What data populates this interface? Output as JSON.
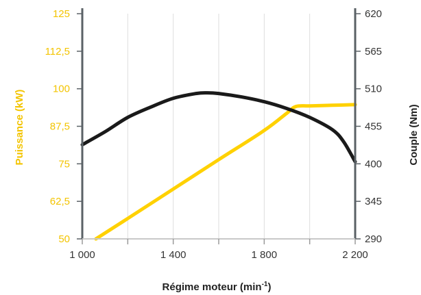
{
  "chart_data": {
    "type": "line",
    "title": "",
    "xlabel": "Régime moteur (min-1)",
    "ylabel_left": "Puissance (kW)",
    "ylabel_right": "Couple (Nm)",
    "x_ticks": [
      1000,
      1400,
      1800,
      2200
    ],
    "x_tick_labels": [
      "1 000",
      "1 400",
      "1 800",
      "2 200"
    ],
    "xlim": [
      1000,
      2200
    ],
    "y_left_ticks": [
      50,
      62.5,
      75,
      87.5,
      100,
      112.5,
      125
    ],
    "y_left_tick_labels": [
      "50",
      "62,5",
      "75",
      "87,5",
      "100",
      "112,5",
      "125"
    ],
    "y_left_lim": [
      50,
      125
    ],
    "y_right_ticks": [
      290,
      345,
      400,
      455,
      510,
      565,
      620
    ],
    "y_right_tick_labels": [
      "290",
      "345",
      "400",
      "455",
      "510",
      "565",
      "620"
    ],
    "y_right_lim": [
      290,
      620
    ],
    "grid": "vertical",
    "series": [
      {
        "axis": "left",
        "color": "#ffd100",
        "x": [
          1060,
          1200,
          1400,
          1600,
          1800,
          1900,
          1940,
          2000,
          2100,
          2200
        ],
        "y": [
          50,
          56.8,
          66.6,
          76.4,
          86.1,
          91.9,
          94.1,
          94.3,
          94.5,
          94.7
        ]
      },
      {
        "axis": "right",
        "color": "#1a1a1a",
        "x": [
          1000,
          1100,
          1200,
          1300,
          1400,
          1500,
          1550,
          1600,
          1700,
          1800,
          1900,
          2000,
          2100,
          2150,
          2200
        ],
        "y": [
          428,
          447,
          468,
          483,
          496,
          503,
          504,
          503,
          498,
          491,
          481,
          468,
          450,
          432,
          403
        ]
      }
    ]
  }
}
